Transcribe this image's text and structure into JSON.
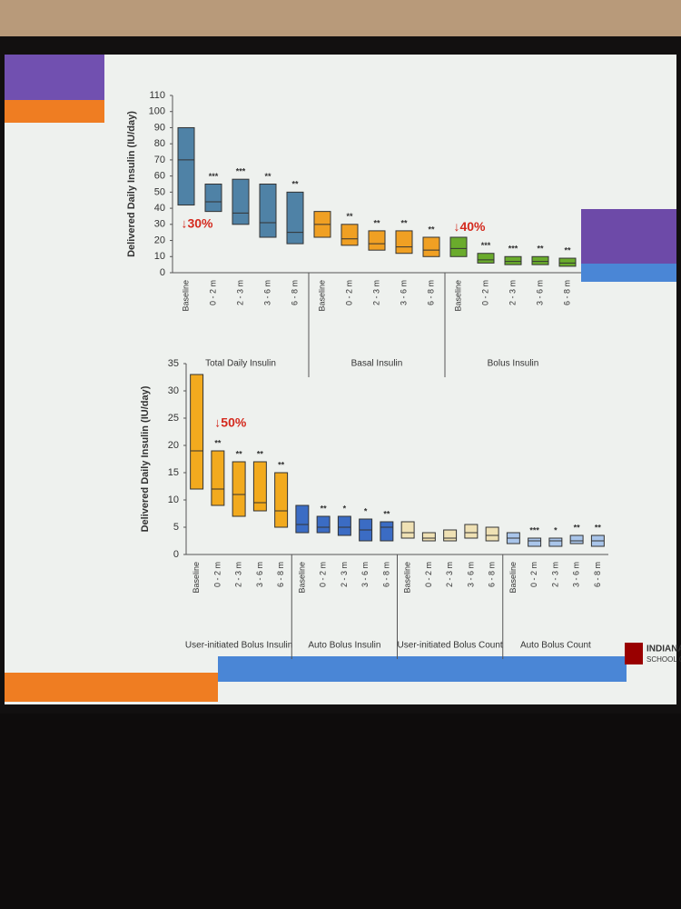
{
  "chart_data": [
    {
      "type": "range_bar",
      "y_label": "Delivered Daily Insulin (IU/day)",
      "ylim": [
        0,
        110
      ],
      "yticks": [
        0,
        10,
        20,
        30,
        40,
        50,
        60,
        70,
        80,
        90,
        100,
        110
      ],
      "annotations": [
        "↓30%",
        "↓40%"
      ],
      "series": [
        {
          "name": "Total Daily Insulin",
          "color": "#4f82a6",
          "categories": [
            "Baseline",
            "0 - 2 m",
            "2 - 3 m",
            "3 - 6 m",
            "6 - 8 m"
          ],
          "low": [
            42,
            38,
            30,
            22,
            18
          ],
          "median": [
            70,
            44,
            37,
            31,
            25
          ],
          "high": [
            90,
            55,
            58,
            55,
            50
          ],
          "markers": [
            null,
            "***",
            "***",
            "**",
            "**"
          ]
        },
        {
          "name": "Basal Insulin",
          "color": "#f0a023",
          "categories": [
            "Baseline",
            "0 - 2 m",
            "2 - 3 m",
            "3 - 6 m",
            "6 - 8 m"
          ],
          "low": [
            22,
            17,
            14,
            12,
            10
          ],
          "median": [
            30,
            21,
            18,
            16,
            14
          ],
          "high": [
            38,
            30,
            26,
            26,
            22
          ],
          "markers": [
            null,
            "**",
            "**",
            "**",
            "**"
          ]
        },
        {
          "name": "Bolus Insulin",
          "color": "#6aab2c",
          "categories": [
            "Baseline",
            "0 - 2 m",
            "2 - 3 m",
            "3 - 6 m",
            "6 - 8 m"
          ],
          "low": [
            10,
            6,
            5,
            5,
            4
          ],
          "median": [
            15,
            8,
            7,
            7,
            6
          ],
          "high": [
            22,
            12,
            10,
            10,
            9
          ],
          "markers": [
            null,
            "***",
            "***",
            "**",
            "**"
          ]
        }
      ]
    },
    {
      "type": "range_bar",
      "y_label": "Delivered Daily Insulin (IU/day)",
      "ylim": [
        0,
        35
      ],
      "yticks": [
        0,
        5,
        10,
        15,
        20,
        25,
        30,
        35
      ],
      "annotations": [
        "↓50%"
      ],
      "series": [
        {
          "name": "User-initiated Bolus Insulin",
          "color": "#f2aa1e",
          "categories": [
            "Baseline",
            "0 - 2 m",
            "2 - 3 m",
            "3 - 6 m",
            "6 - 8 m"
          ],
          "low": [
            12,
            9,
            7,
            8,
            5
          ],
          "median": [
            19,
            12,
            11,
            9.5,
            8
          ],
          "high": [
            33,
            19,
            17,
            17,
            15
          ],
          "markers": [
            null,
            "**",
            "**",
            "**",
            "**"
          ]
        },
        {
          "name": "Auto Bolus Insulin",
          "color": "#3b6cc4",
          "categories": [
            "Baseline",
            "0 - 2 m",
            "2 - 3 m",
            "3 - 6 m",
            "6 - 8 m"
          ],
          "low": [
            4,
            4,
            3.5,
            2.5,
            2.5
          ],
          "median": [
            5.5,
            5,
            5,
            4.5,
            5
          ],
          "high": [
            9,
            7,
            7,
            6.5,
            6
          ],
          "markers": [
            null,
            "**",
            "*",
            "*",
            "**"
          ]
        },
        {
          "name": "User-initiated Bolus Count",
          "color": "#efe1b4",
          "categories": [
            "Baseline",
            "0 - 2 m",
            "2 - 3 m",
            "3 - 6 m",
            "6 - 8 m"
          ],
          "low": [
            3,
            2.5,
            2.5,
            3,
            2.5
          ],
          "median": [
            4,
            3,
            3,
            4,
            3.5
          ],
          "high": [
            6,
            4,
            4.5,
            5.5,
            5
          ],
          "markers": [
            null,
            null,
            null,
            null,
            null
          ]
        },
        {
          "name": "Auto Bolus Count",
          "color": "#a9c5ea",
          "categories": [
            "Baseline",
            "0 - 2 m",
            "2 - 3 m",
            "3 - 6 m",
            "6 - 8 m"
          ],
          "low": [
            2,
            1.5,
            1.5,
            2,
            1.5
          ],
          "median": [
            3,
            2.5,
            2.5,
            2.5,
            2.5
          ],
          "high": [
            4,
            3,
            3,
            3.5,
            3.5
          ],
          "markers": [
            null,
            "***",
            "*",
            "**",
            "**"
          ]
        }
      ]
    }
  ],
  "logo": {
    "title": "INDIANA U",
    "subtitle": "SCHOOL OF MED"
  }
}
